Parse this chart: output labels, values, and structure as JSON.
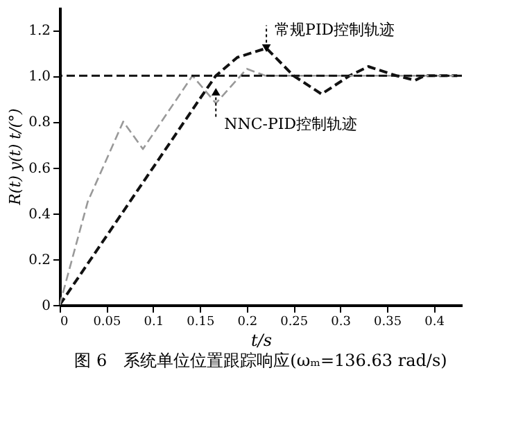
{
  "chart_data": {
    "type": "line",
    "title": "图 6　系统单位位置跟踪响应(ωₘ=136.63 rad/s)",
    "xlabel": "t/s",
    "ylabel": "R(t) y(t) t/(°)",
    "xlim": [
      0,
      0.43
    ],
    "xticks": [
      0,
      0.05,
      0.1,
      0.15,
      0.2,
      0.25,
      0.3,
      0.35,
      0.4
    ],
    "ylim": [
      0,
      1.3
    ],
    "yticks": [
      0,
      0.2,
      0.4,
      0.6,
      0.8,
      {
        "value": 1.0,
        "label": "1.0"
      },
      1.2
    ],
    "grid": false,
    "line_style": "dashed",
    "marker": "none",
    "series": [
      {
        "color": "#111111",
        "x": [
          0,
          0.05,
          0.1,
          0.15,
          0.167,
          0.19,
          0.221,
          0.25,
          0.28,
          0.31,
          0.33,
          0.36,
          0.38,
          0.39,
          0.425
        ],
        "values": [
          0,
          0.3,
          0.6,
          0.9,
          1.0,
          1.08,
          1.12,
          1.0,
          0.92,
          1.0,
          1.04,
          1.0,
          0.98,
          1.0,
          1.0
        ]
      },
      {
        "color": "#999999",
        "x": [
          0,
          0.03,
          0.068,
          0.089,
          0.142,
          0.167,
          0.2,
          0.22,
          0.425
        ],
        "values": [
          0,
          0.45,
          0.8,
          0.68,
          1.0,
          0.88,
          1.03,
          1.0,
          1.0
        ]
      }
    ],
    "ref_lines": [
      {
        "axis": "y",
        "value": 1.0,
        "line_style": "dashed",
        "color": "#111111"
      }
    ],
    "annotations": [
      {
        "text": "常规PID控制轨迹",
        "x": 0.221,
        "y": 1.12
      },
      {
        "text": "NNC-PID控制轨迹",
        "x": 0.167,
        "y": 0.93
      }
    ]
  }
}
